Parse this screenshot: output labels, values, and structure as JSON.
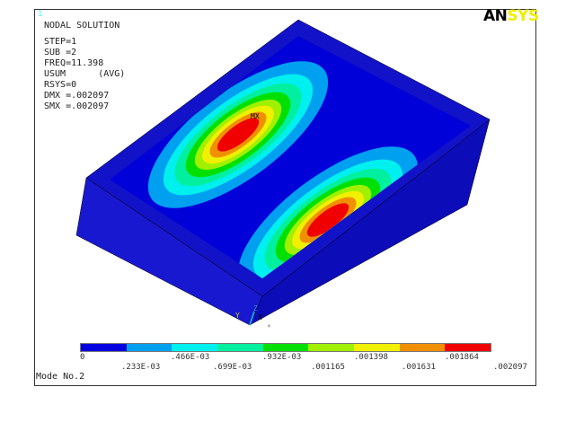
{
  "window_number": "1",
  "logo": {
    "part1": "AN",
    "part2": "SYS"
  },
  "info": {
    "title": "NODAL SOLUTION",
    "lines": [
      "STEP=1",
      "SUB =2",
      "FREQ=11.398",
      "USUM      (AVG)",
      "RSYS=0",
      "DMX =.002097",
      "SMX =.002097"
    ]
  },
  "plot": {
    "max_marker": "MX",
    "triad": {
      "x": "X",
      "y": "Y",
      "z": "Z"
    }
  },
  "legend": {
    "colors": [
      "#0000e0",
      "#00a0f0",
      "#00f0f0",
      "#00f0a0",
      "#00e000",
      "#a0f000",
      "#f0f000",
      "#f09000",
      "#f00000"
    ],
    "labels_top": [
      "0",
      ".466E-03",
      ".932E-03",
      ".001398",
      ".001864"
    ],
    "labels_bottom": [
      ".233E-03",
      ".699E-03",
      ".001165",
      ".001631",
      ".002097"
    ]
  },
  "footer": "Mode No.2"
}
